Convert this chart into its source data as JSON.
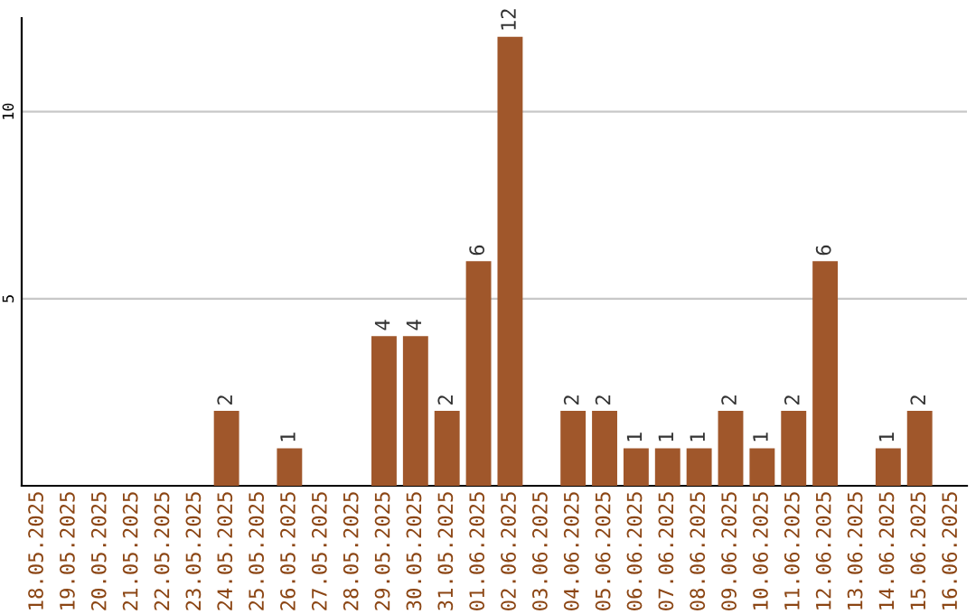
{
  "chart_data": {
    "type": "bar",
    "categories": [
      "18.05.2025",
      "19.05.2025",
      "20.05.2025",
      "21.05.2025",
      "22.05.2025",
      "23.05.2025",
      "24.05.2025",
      "25.05.2025",
      "26.05.2025",
      "27.05.2025",
      "28.05.2025",
      "29.05.2025",
      "30.05.2025",
      "31.05.2025",
      "01.06.2025",
      "02.06.2025",
      "03.06.2025",
      "04.06.2025",
      "05.06.2025",
      "06.06.2025",
      "07.06.2025",
      "08.06.2025",
      "09.06.2025",
      "10.06.2025",
      "11.06.2025",
      "12.06.2025",
      "13.06.2025",
      "14.06.2025",
      "15.06.2025",
      "16.06.2025"
    ],
    "values": [
      0,
      0,
      0,
      0,
      0,
      0,
      2,
      0,
      1,
      0,
      0,
      4,
      4,
      2,
      6,
      12,
      0,
      2,
      2,
      1,
      1,
      1,
      2,
      1,
      2,
      6,
      0,
      1,
      2,
      0
    ],
    "value_labels": [
      null,
      null,
      null,
      null,
      null,
      null,
      "2",
      null,
      "1",
      null,
      null,
      "4",
      "4",
      "2",
      "6",
      "12",
      null,
      "2",
      "2",
      "1",
      "1",
      "1",
      "2",
      "1",
      "2",
      "6",
      null,
      "1",
      "2",
      null
    ],
    "color": "#a0572b",
    "ylim": [
      0,
      12.5
    ],
    "yticks": [
      5,
      10
    ],
    "grid": "y"
  }
}
